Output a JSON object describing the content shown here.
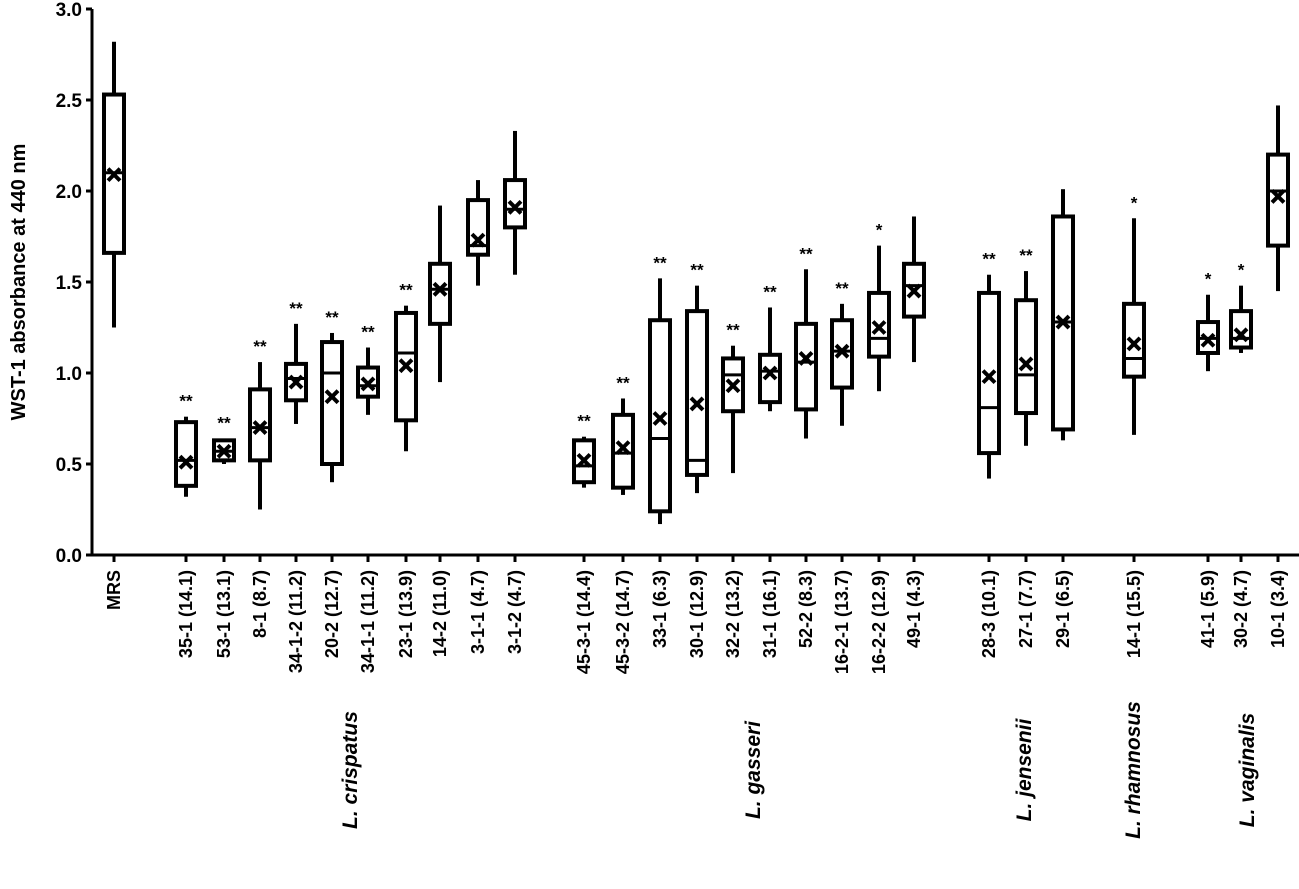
{
  "chart_data": {
    "type": "box",
    "ylabel": "WST-1 absorbance at 440 nm",
    "ylim": [
      0,
      3.0
    ],
    "yticks": [
      "0.0",
      "0.5",
      "1.0",
      "1.5",
      "2.0",
      "2.5",
      "3.0"
    ],
    "grid": false,
    "boxes": [
      {
        "label": "MRS",
        "min": 1.25,
        "q1": 1.66,
        "median": 2.1,
        "q3": 2.53,
        "max": 2.82,
        "mean": 2.09,
        "sig": ""
      },
      {
        "label": "35-1 (14.1)",
        "min": 0.32,
        "q1": 0.38,
        "median": 0.52,
        "q3": 0.73,
        "max": 0.76,
        "mean": 0.51,
        "sig": "**"
      },
      {
        "label": "53-1 (13.1)",
        "min": 0.5,
        "q1": 0.52,
        "median": 0.57,
        "q3": 0.63,
        "max": 0.64,
        "mean": 0.57,
        "sig": "**"
      },
      {
        "label": "8-1 (8.7)",
        "min": 0.25,
        "q1": 0.52,
        "median": 0.7,
        "q3": 0.91,
        "max": 1.06,
        "mean": 0.7,
        "sig": "**"
      },
      {
        "label": "34-1-2 (11.2)",
        "min": 0.72,
        "q1": 0.85,
        "median": 0.97,
        "q3": 1.05,
        "max": 1.27,
        "mean": 0.95,
        "sig": "**"
      },
      {
        "label": "20-2 (12.7)",
        "min": 0.4,
        "q1": 0.5,
        "median": 1.0,
        "q3": 1.17,
        "max": 1.22,
        "mean": 0.87,
        "sig": "**"
      },
      {
        "label": "34-1-1 (11.2)",
        "min": 0.77,
        "q1": 0.87,
        "median": 0.93,
        "q3": 1.03,
        "max": 1.14,
        "mean": 0.94,
        "sig": "**"
      },
      {
        "label": "23-1 (13.9)",
        "min": 0.57,
        "q1": 0.74,
        "median": 1.11,
        "q3": 1.33,
        "max": 1.37,
        "mean": 1.04,
        "sig": "**"
      },
      {
        "label": "14-2 (11.0)",
        "min": 0.95,
        "q1": 1.27,
        "median": 1.46,
        "q3": 1.6,
        "max": 1.92,
        "mean": 1.46,
        "sig": ""
      },
      {
        "label": "3-1-1 (4.7)",
        "min": 1.48,
        "q1": 1.65,
        "median": 1.7,
        "q3": 1.95,
        "max": 2.06,
        "mean": 1.73,
        "sig": ""
      },
      {
        "label": "3-1-2 (4.7)",
        "min": 1.54,
        "q1": 1.8,
        "median": 1.9,
        "q3": 2.06,
        "max": 2.33,
        "mean": 1.91,
        "sig": ""
      },
      {
        "label": "45-3-1 (14.4)",
        "min": 0.37,
        "q1": 0.4,
        "median": 0.49,
        "q3": 0.63,
        "max": 0.65,
        "mean": 0.52,
        "sig": "**"
      },
      {
        "label": "45-3-2 (14.7)",
        "min": 0.33,
        "q1": 0.37,
        "median": 0.56,
        "q3": 0.77,
        "max": 0.86,
        "mean": 0.59,
        "sig": "**"
      },
      {
        "label": "33-1 (6.3)",
        "min": 0.17,
        "q1": 0.24,
        "median": 0.64,
        "q3": 1.29,
        "max": 1.52,
        "mean": 0.75,
        "sig": "**"
      },
      {
        "label": "30-1 (12.9)",
        "min": 0.34,
        "q1": 0.44,
        "median": 0.52,
        "q3": 1.34,
        "max": 1.48,
        "mean": 0.83,
        "sig": "**"
      },
      {
        "label": "32-2 (13.2)",
        "min": 0.45,
        "q1": 0.79,
        "median": 0.99,
        "q3": 1.08,
        "max": 1.15,
        "mean": 0.93,
        "sig": "**"
      },
      {
        "label": "31-1 (16.1)",
        "min": 0.79,
        "q1": 0.84,
        "median": 1.01,
        "q3": 1.1,
        "max": 1.36,
        "mean": 1.0,
        "sig": "**"
      },
      {
        "label": "52-2 (8.3)",
        "min": 0.64,
        "q1": 0.8,
        "median": 1.06,
        "q3": 1.27,
        "max": 1.57,
        "mean": 1.08,
        "sig": "**"
      },
      {
        "label": "16-2-1 (13.7)",
        "min": 0.71,
        "q1": 0.92,
        "median": 1.12,
        "q3": 1.29,
        "max": 1.38,
        "mean": 1.12,
        "sig": "**"
      },
      {
        "label": "16-2-2 (12.9)",
        "min": 0.9,
        "q1": 1.09,
        "median": 1.19,
        "q3": 1.44,
        "max": 1.7,
        "mean": 1.25,
        "sig": "*"
      },
      {
        "label": "49-1 (4.3)",
        "min": 1.06,
        "q1": 1.31,
        "median": 1.48,
        "q3": 1.6,
        "max": 1.86,
        "mean": 1.45,
        "sig": ""
      },
      {
        "label": "28-3 (10.1)",
        "min": 0.42,
        "q1": 0.56,
        "median": 0.81,
        "q3": 1.44,
        "max": 1.54,
        "mean": 0.98,
        "sig": "**"
      },
      {
        "label": "27-1 (7.7)",
        "min": 0.6,
        "q1": 0.78,
        "median": 0.99,
        "q3": 1.4,
        "max": 1.56,
        "mean": 1.05,
        "sig": "**"
      },
      {
        "label": "29-1 (6.5)",
        "min": 0.63,
        "q1": 0.69,
        "median": 1.28,
        "q3": 1.86,
        "max": 2.01,
        "mean": 1.28,
        "sig": ""
      },
      {
        "label": "14-1 (15.5)",
        "min": 0.66,
        "q1": 0.98,
        "median": 1.08,
        "q3": 1.38,
        "max": 1.85,
        "mean": 1.16,
        "sig": "*"
      },
      {
        "label": "41-1 (5.9)",
        "min": 1.01,
        "q1": 1.11,
        "median": 1.19,
        "q3": 1.28,
        "max": 1.43,
        "mean": 1.18,
        "sig": "*"
      },
      {
        "label": "30-2 (4.7)",
        "min": 1.11,
        "q1": 1.14,
        "median": 1.19,
        "q3": 1.34,
        "max": 1.48,
        "mean": 1.21,
        "sig": "*"
      },
      {
        "label": "10-1 (3.4)",
        "min": 1.45,
        "q1": 1.7,
        "median": 2.0,
        "q3": 2.2,
        "max": 2.47,
        "mean": 1.97,
        "sig": ""
      }
    ],
    "groups": [
      {
        "label": "L. crispatus",
        "first": 1,
        "last": 10
      },
      {
        "label": "L. gasseri",
        "first": 11,
        "last": 20
      },
      {
        "label": "L. jensenii",
        "first": 21,
        "last": 23
      },
      {
        "label": "L. rhamnosus",
        "first": 24,
        "last": 24
      },
      {
        "label": "L. vaginalis",
        "first": 25,
        "last": 27
      }
    ]
  }
}
